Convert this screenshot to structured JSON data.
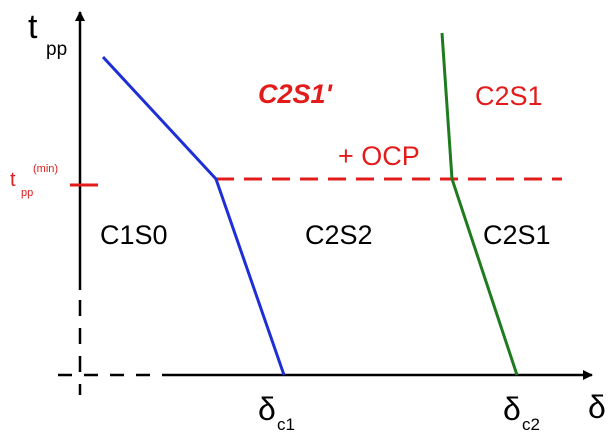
{
  "axes": {
    "y_label_main": "t",
    "y_label_sub": "pp",
    "x_label": "δ",
    "tpp_min_main": "t",
    "tpp_min_sub": "pp",
    "tpp_min_sup": "(min)",
    "delta_c1_main": "δ",
    "delta_c1_sub": "c1",
    "delta_c2_main": "δ",
    "delta_c2_sub": "c2"
  },
  "regions": {
    "c1s0": "C1S0",
    "c2s2": "C2S2",
    "c2s1_lower": "C2S1",
    "c2s1_upper": "C2S1",
    "c2s1_prime": "C2S1'",
    "ocp": "+ OCP"
  },
  "colors": {
    "axis": "#000000",
    "boundary_blue": "#1f2fd6",
    "boundary_green": "#1e7b1e",
    "threshold_red": "#e21b1b",
    "text_red": "#e21b1b"
  }
}
